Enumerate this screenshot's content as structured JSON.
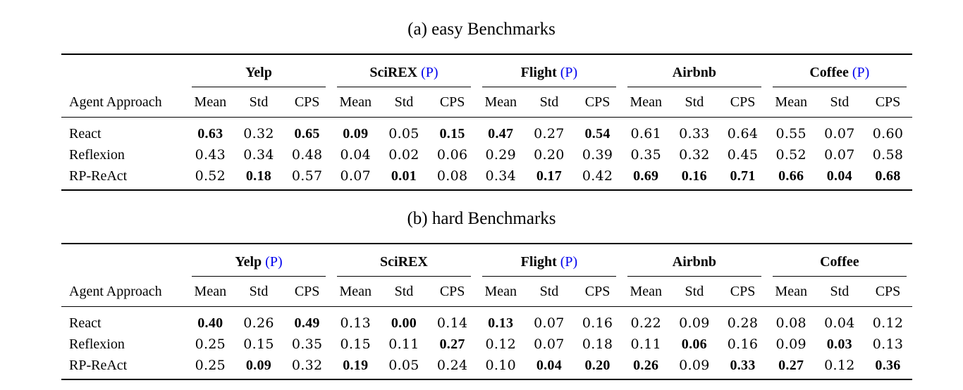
{
  "tables": [
    {
      "caption": "(a) easy Benchmarks",
      "row_header": "Agent Approach",
      "sub_columns": [
        "Mean",
        "Std",
        "CPS"
      ],
      "datasets": [
        {
          "name": "Yelp",
          "p": ""
        },
        {
          "name": "SciREX",
          "p": "(P)"
        },
        {
          "name": "Flight",
          "p": "(P)"
        },
        {
          "name": "Airbnb",
          "p": ""
        },
        {
          "name": "Coffee",
          "p": "(P)"
        }
      ],
      "rows": [
        {
          "name": "React",
          "values": [
            "0.63",
            "0.32",
            "0.65",
            "0.09",
            "0.05",
            "0.15",
            "0.47",
            "0.27",
            "0.54",
            "0.61",
            "0.33",
            "0.64",
            "0.55",
            "0.07",
            "0.60"
          ],
          "bold": [
            true,
            false,
            true,
            true,
            false,
            true,
            true,
            false,
            true,
            false,
            false,
            false,
            false,
            false,
            false
          ]
        },
        {
          "name": "Reflexion",
          "values": [
            "0.43",
            "0.34",
            "0.48",
            "0.04",
            "0.02",
            "0.06",
            "0.29",
            "0.20",
            "0.39",
            "0.35",
            "0.32",
            "0.45",
            "0.52",
            "0.07",
            "0.58"
          ],
          "bold": [
            false,
            false,
            false,
            false,
            false,
            false,
            false,
            false,
            false,
            false,
            false,
            false,
            false,
            false,
            false
          ]
        },
        {
          "name": "RP-ReAct",
          "values": [
            "0.52",
            "0.18",
            "0.57",
            "0.07",
            "0.01",
            "0.08",
            "0.34",
            "0.17",
            "0.42",
            "0.69",
            "0.16",
            "0.71",
            "0.66",
            "0.04",
            "0.68"
          ],
          "bold": [
            false,
            true,
            false,
            false,
            true,
            false,
            false,
            true,
            false,
            true,
            true,
            true,
            true,
            true,
            true
          ]
        }
      ]
    },
    {
      "caption": "(b) hard Benchmarks",
      "row_header": "Agent Approach",
      "sub_columns": [
        "Mean",
        "Std",
        "CPS"
      ],
      "datasets": [
        {
          "name": "Yelp",
          "p": "(P)"
        },
        {
          "name": "SciREX",
          "p": ""
        },
        {
          "name": "Flight",
          "p": "(P)"
        },
        {
          "name": "Airbnb",
          "p": ""
        },
        {
          "name": "Coffee",
          "p": ""
        }
      ],
      "rows": [
        {
          "name": "React",
          "values": [
            "0.40",
            "0.26",
            "0.49",
            "0.13",
            "0.00",
            "0.14",
            "0.13",
            "0.07",
            "0.16",
            "0.22",
            "0.09",
            "0.28",
            "0.08",
            "0.04",
            "0.12"
          ],
          "bold": [
            true,
            false,
            true,
            false,
            true,
            false,
            true,
            false,
            false,
            false,
            false,
            false,
            false,
            false,
            false
          ]
        },
        {
          "name": "Reflexion",
          "values": [
            "0.25",
            "0.15",
            "0.35",
            "0.15",
            "0.11",
            "0.27",
            "0.12",
            "0.07",
            "0.18",
            "0.11",
            "0.06",
            "0.16",
            "0.09",
            "0.03",
            "0.13"
          ],
          "bold": [
            false,
            false,
            false,
            false,
            false,
            true,
            false,
            false,
            false,
            false,
            true,
            false,
            false,
            true,
            false
          ]
        },
        {
          "name": "RP-ReAct",
          "values": [
            "0.25",
            "0.09",
            "0.32",
            "0.19",
            "0.05",
            "0.24",
            "0.10",
            "0.04",
            "0.20",
            "0.26",
            "0.09",
            "0.33",
            "0.27",
            "0.12",
            "0.36"
          ],
          "bold": [
            false,
            true,
            false,
            true,
            false,
            false,
            false,
            true,
            true,
            true,
            false,
            true,
            true,
            false,
            true
          ]
        }
      ]
    }
  ]
}
